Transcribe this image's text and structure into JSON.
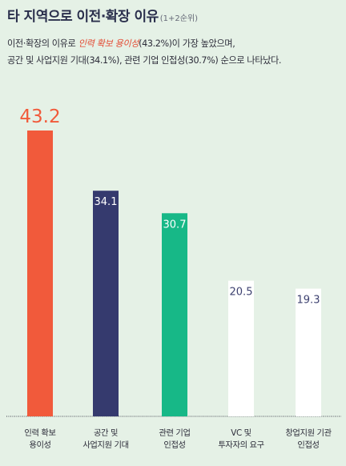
{
  "header": {
    "title": "타 지역으로 이전·확장 이유",
    "title_note": "(1+2순위)"
  },
  "summary": {
    "line1_prefix": "이전·확장의 이유로 ",
    "line1_highlight": "인력 확보 용이성",
    "line1_suffix": "(43.2%)이 가장 높았으며,",
    "line2": "공간 및 사업지원 기대(34.1%), 관련 기업 인접성(30.7%) 순으로 나타났다."
  },
  "chart_data": {
    "type": "bar",
    "title": "",
    "xlabel": "",
    "ylabel": "",
    "ylim": [
      0,
      50
    ],
    "grid": false,
    "categories": [
      "인력 확보\n용이성",
      "공간 및\n사업지원 기대",
      "관련 기업\n인접성",
      "VC 및\n투자자의 요구",
      "창업지원 기관\n인접성"
    ],
    "values": [
      43.2,
      34.1,
      30.7,
      20.5,
      19.3
    ],
    "value_labels": [
      "43.2",
      "34.1",
      "30.7",
      "20.5",
      "19.3"
    ],
    "bar_colors": [
      "#f15a3b",
      "#353a6e",
      "#17b887",
      "#ffffff",
      "#ffffff"
    ],
    "label_colors": [
      "#f15a3b",
      "#ffffff",
      "#ffffff",
      "#3d4170",
      "#3d4170"
    ],
    "label_positions": [
      "above",
      "inside",
      "inside",
      "inside",
      "inside"
    ]
  }
}
